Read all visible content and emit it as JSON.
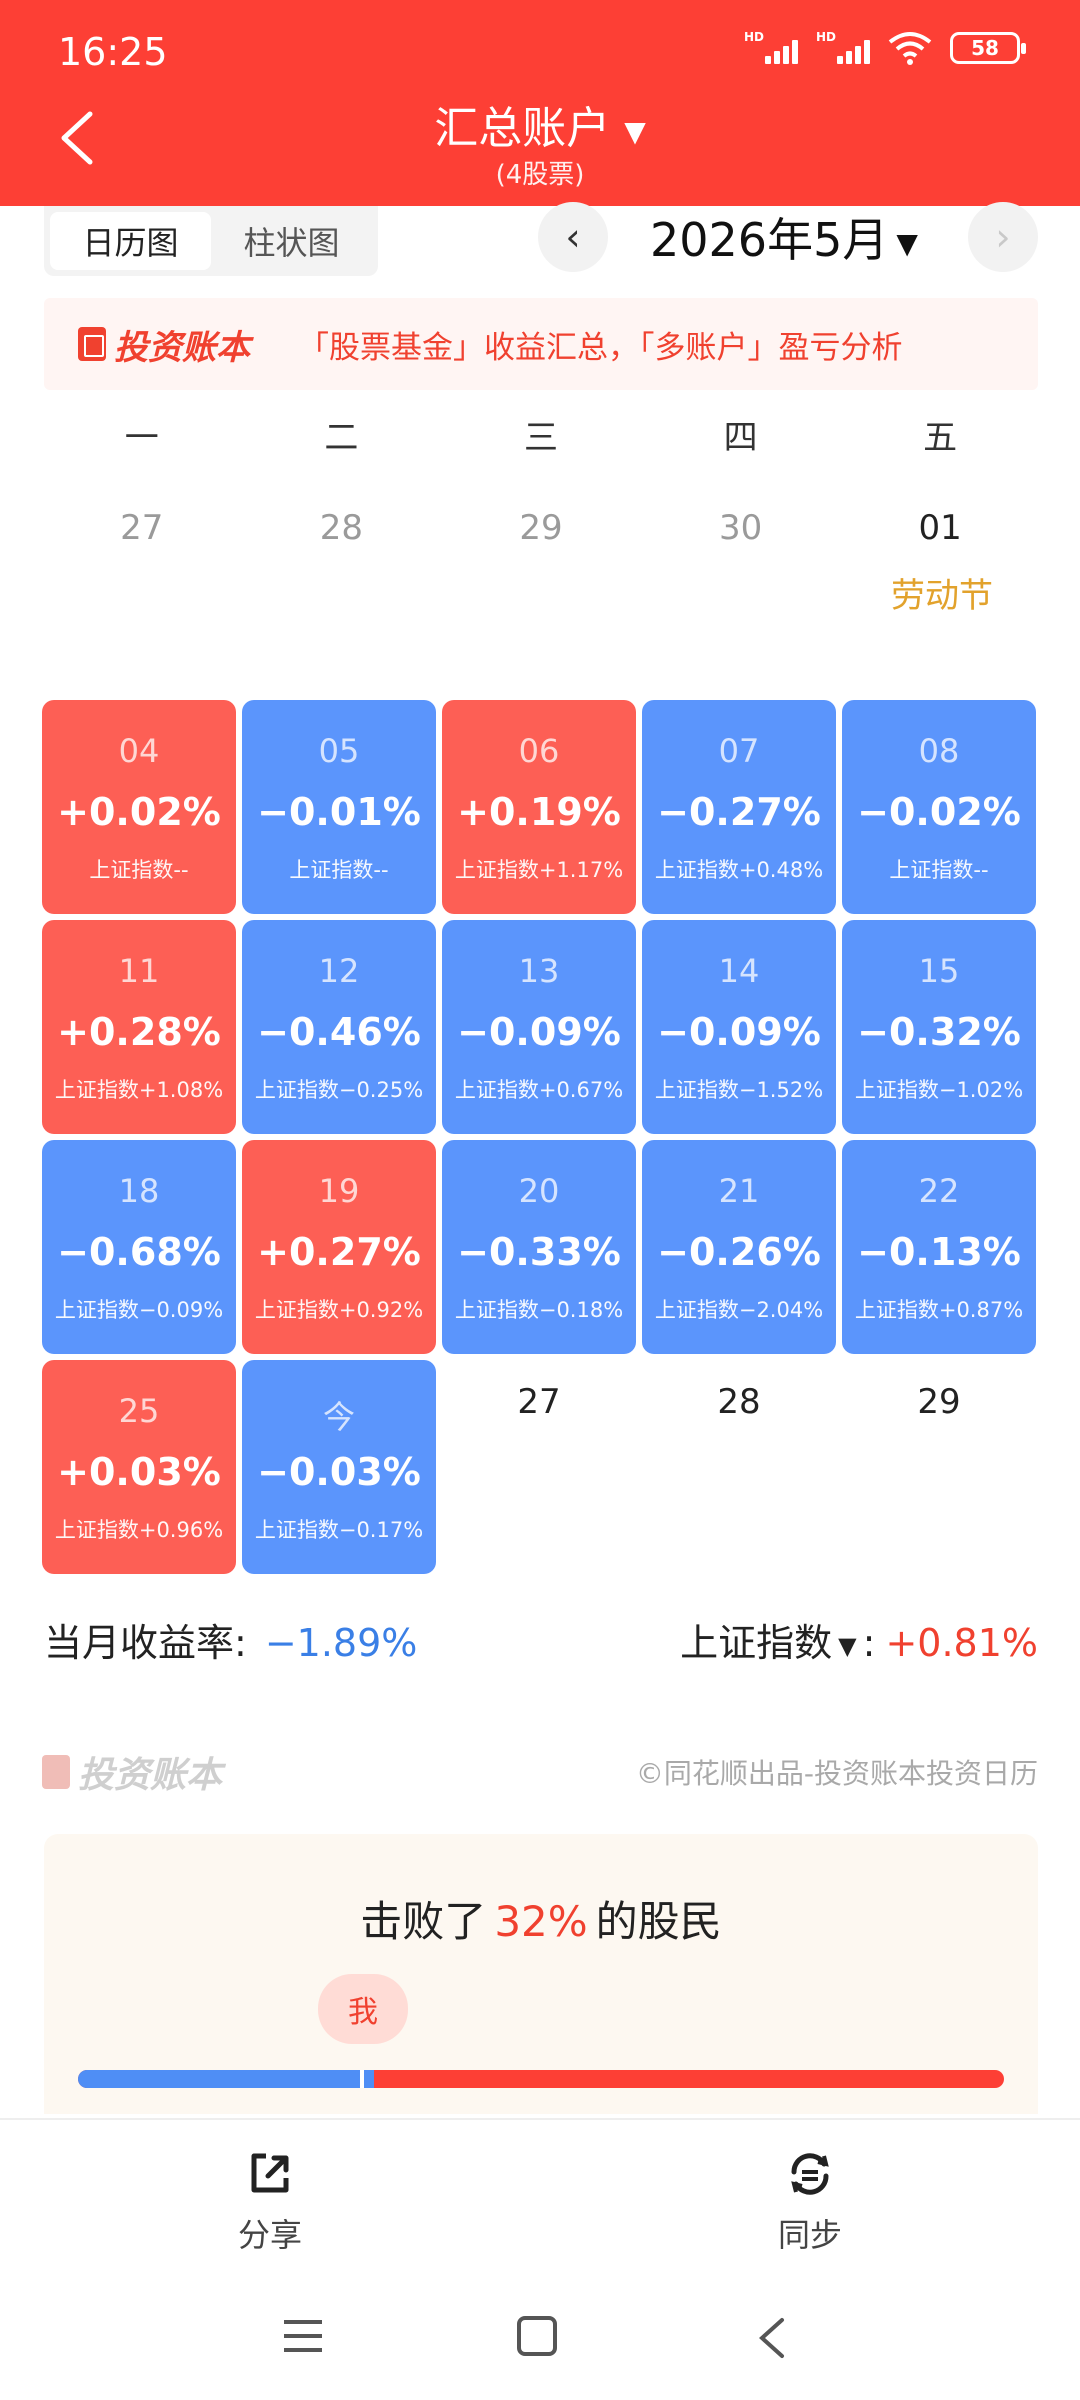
{
  "status": {
    "time": "16:25",
    "hd1": "HD",
    "hd2": "HD",
    "battery": "58"
  },
  "header": {
    "title": "汇总账户",
    "subtitle": "(4股票)"
  },
  "view_toggle": {
    "calendar": "日历图",
    "bar": "柱状图"
  },
  "month": {
    "label": "2026年5月",
    "prev": "‹",
    "next": "›"
  },
  "banner": {
    "logo": "投资账本",
    "text": "「股票基金」收益汇总，「多账户」盈亏分析"
  },
  "weekdays": [
    "一",
    "二",
    "三",
    "四",
    "五"
  ],
  "prev_days": [
    "27",
    "28",
    "29",
    "30",
    "01"
  ],
  "holiday": "劳动节",
  "weeks": [
    [
      {
        "date": "04",
        "pct": "+0.02%",
        "idx": "上证指数--",
        "trend": "up"
      },
      {
        "date": "05",
        "pct": "−0.01%",
        "idx": "上证指数--",
        "trend": "down"
      },
      {
        "date": "06",
        "pct": "+0.19%",
        "idx": "上证指数+1.17%",
        "trend": "up"
      },
      {
        "date": "07",
        "pct": "−0.27%",
        "idx": "上证指数+0.48%",
        "trend": "down"
      },
      {
        "date": "08",
        "pct": "−0.02%",
        "idx": "上证指数--",
        "trend": "down"
      }
    ],
    [
      {
        "date": "11",
        "pct": "+0.28%",
        "idx": "上证指数+1.08%",
        "trend": "up"
      },
      {
        "date": "12",
        "pct": "−0.46%",
        "idx": "上证指数−0.25%",
        "trend": "down"
      },
      {
        "date": "13",
        "pct": "−0.09%",
        "idx": "上证指数+0.67%",
        "trend": "down"
      },
      {
        "date": "14",
        "pct": "−0.09%",
        "idx": "上证指数−1.52%",
        "trend": "down"
      },
      {
        "date": "15",
        "pct": "−0.32%",
        "idx": "上证指数−1.02%",
        "trend": "down"
      }
    ],
    [
      {
        "date": "18",
        "pct": "−0.68%",
        "idx": "上证指数−0.09%",
        "trend": "down"
      },
      {
        "date": "19",
        "pct": "+0.27%",
        "idx": "上证指数+0.92%",
        "trend": "up"
      },
      {
        "date": "20",
        "pct": "−0.33%",
        "idx": "上证指数−0.18%",
        "trend": "down"
      },
      {
        "date": "21",
        "pct": "−0.26%",
        "idx": "上证指数−2.04%",
        "trend": "down"
      },
      {
        "date": "22",
        "pct": "−0.13%",
        "idx": "上证指数+0.87%",
        "trend": "down"
      }
    ],
    [
      {
        "date": "25",
        "pct": "+0.03%",
        "idx": "上证指数+0.96%",
        "trend": "up"
      },
      {
        "date": "今",
        "pct": "−0.03%",
        "idx": "上证指数−0.17%",
        "trend": "down"
      }
    ]
  ],
  "future_days": [
    "27",
    "28",
    "29"
  ],
  "summary": {
    "monthly_label": "当月收益率:",
    "monthly_value": "−1.89%",
    "index_label": "上证指数",
    "index_value": "+0.81%"
  },
  "footer": {
    "logo": "投资账本",
    "credit": "©同花顺出品-投资账本投资日历"
  },
  "beat": {
    "prefix": "击败了",
    "value": "32%",
    "suffix": "的股民",
    "me": "我",
    "percent": 32
  },
  "actions": {
    "share": "分享",
    "sync": "同步"
  },
  "colors": {
    "brand_red": "#fd3f35",
    "up": "#fd5f55",
    "down": "#5b95fc",
    "holiday": "#e2a22c"
  }
}
